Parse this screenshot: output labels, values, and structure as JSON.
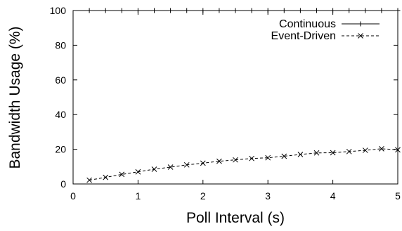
{
  "chart_data": {
    "type": "line",
    "xlabel": "Poll Interval (s)",
    "ylabel": "Bandwidth Usage (%)",
    "xlim": [
      0,
      5
    ],
    "ylim": [
      0,
      100
    ],
    "x_ticks": [
      0,
      1,
      2,
      3,
      4,
      5
    ],
    "y_ticks": [
      0,
      20,
      40,
      60,
      80,
      100
    ],
    "grid": false,
    "legend_position": "top-right",
    "series": [
      {
        "name": "Continuous",
        "line_style": "solid",
        "marker": "+",
        "color": "#000000",
        "x": [
          0.25,
          0.5,
          0.75,
          1.0,
          1.25,
          1.5,
          1.75,
          2.0,
          2.25,
          2.5,
          2.75,
          3.0,
          3.25,
          3.5,
          3.75,
          4.0,
          4.25,
          4.5,
          4.75,
          5.0
        ],
        "y": [
          100,
          100,
          100,
          100,
          100,
          100,
          100,
          100,
          100,
          100,
          100,
          100,
          100,
          100,
          100,
          100,
          100,
          100,
          100,
          100
        ]
      },
      {
        "name": "Event-Driven",
        "line_style": "dashed",
        "marker": "x",
        "color": "#000000",
        "x": [
          0.25,
          0.5,
          0.75,
          1.0,
          1.25,
          1.5,
          1.75,
          2.0,
          2.25,
          2.5,
          2.75,
          3.0,
          3.25,
          3.5,
          3.75,
          4.0,
          4.25,
          4.5,
          4.75,
          5.0
        ],
        "y": [
          2.2,
          3.8,
          5.5,
          7.0,
          8.5,
          9.7,
          11.0,
          12.0,
          13.1,
          13.9,
          14.7,
          15.1,
          16.0,
          17.0,
          17.9,
          18.0,
          18.7,
          19.4,
          20.3,
          19.7
        ]
      }
    ]
  }
}
